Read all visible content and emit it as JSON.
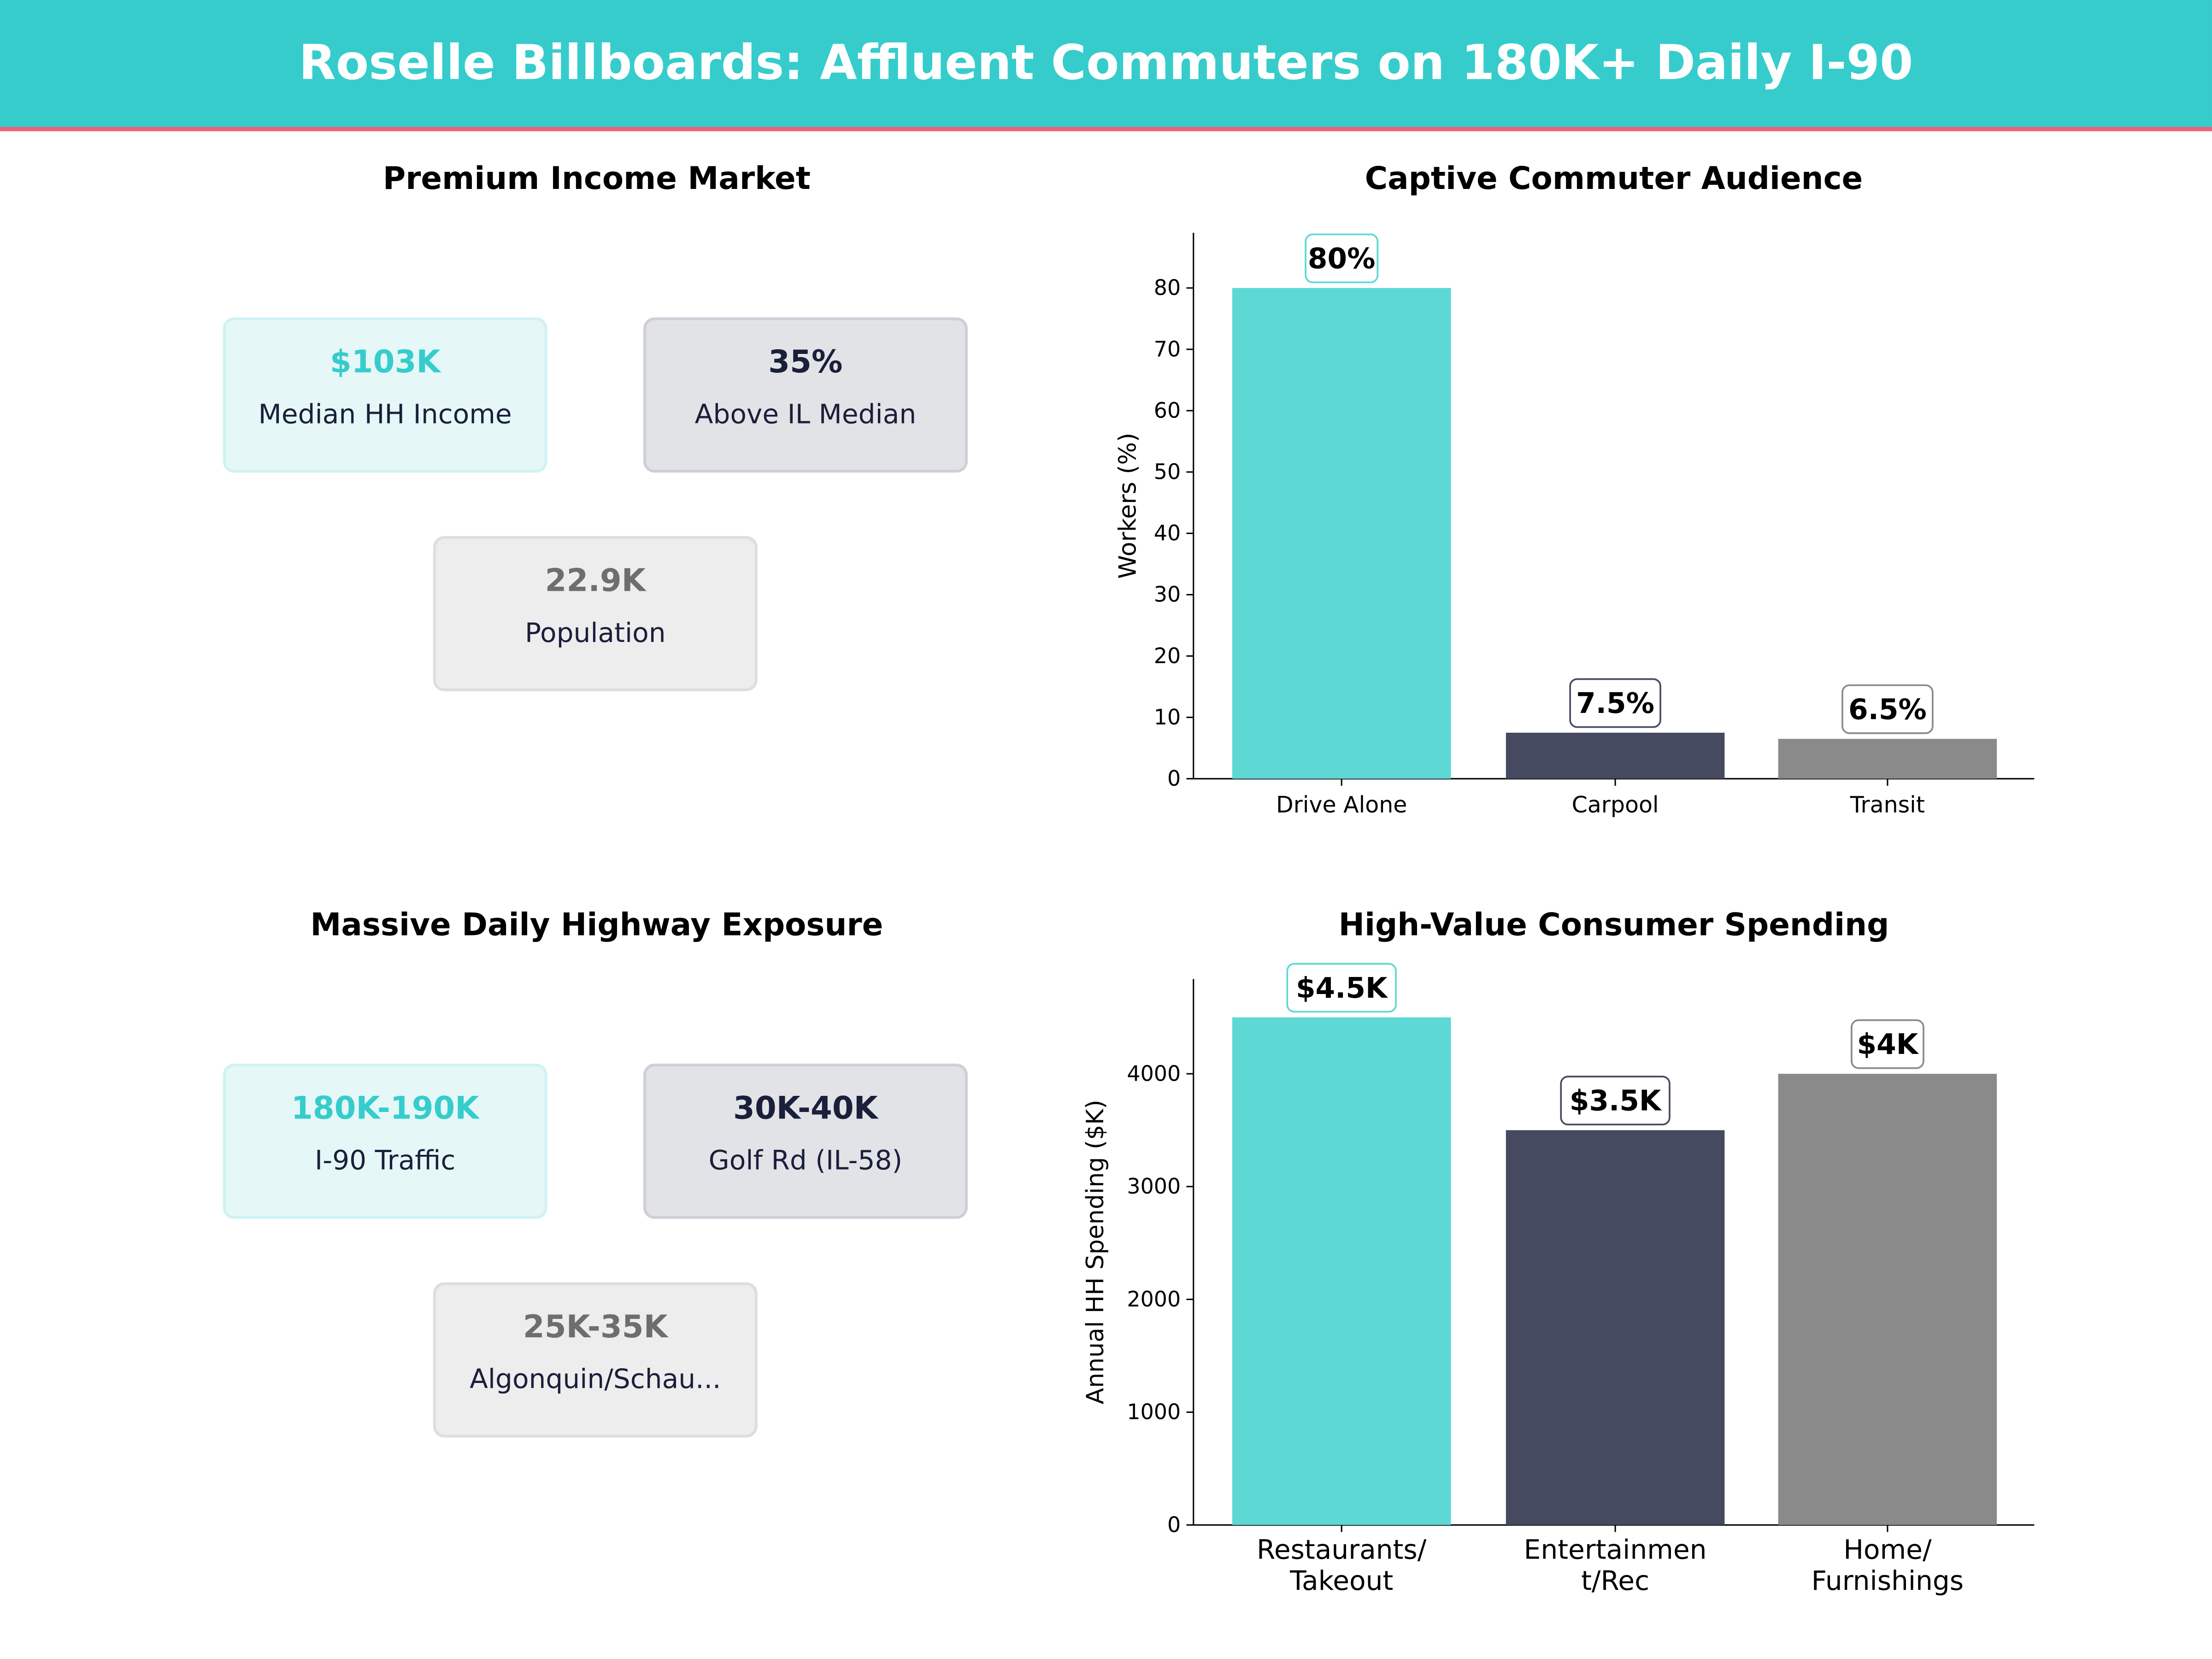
{
  "header": {
    "title": "Roselle Billboards: Affluent Commuters on 180K+ Daily I-90"
  },
  "colors": {
    "teal": "#36CCCC",
    "accent_line": "#F0607A",
    "bars": [
      "#5DD8D5",
      "#454A60",
      "#8A8A8A"
    ]
  },
  "income_panel": {
    "title": "Premium Income Market",
    "cards": [
      {
        "value": "$103K",
        "label": "Median HH Income"
      },
      {
        "value": "35%",
        "label": "Above IL Median"
      },
      {
        "value": "22.9K",
        "label": "Population"
      }
    ]
  },
  "traffic_panel": {
    "title": "Massive Daily Highway Exposure",
    "cards": [
      {
        "value": "180K-190K",
        "label": "I-90  Traffic"
      },
      {
        "value": "30K-40K",
        "label": "Golf Rd (IL-58)"
      },
      {
        "value": "25K-35K",
        "label": "Algonquin/Schau..."
      }
    ]
  },
  "chart_data": [
    {
      "type": "bar",
      "title": "Captive Commuter Audience",
      "xlabel": "",
      "ylabel": "Workers (%)",
      "categories": [
        [
          "Drive Alone"
        ],
        [
          "Carpool"
        ],
        [
          "Transit"
        ]
      ],
      "values": [
        80,
        7.5,
        6.5
      ],
      "data_labels": [
        "80%",
        "7.5%",
        "6.5%"
      ],
      "ylim": [
        0,
        89
      ],
      "yticks": [
        0,
        10,
        20,
        30,
        40,
        50,
        60,
        70,
        80
      ],
      "grid": false
    },
    {
      "type": "bar",
      "title": "High-Value Consumer Spending",
      "xlabel": "",
      "ylabel": "Annual HH Spending ($K)",
      "categories": [
        [
          "Restaurants/",
          "Takeout"
        ],
        [
          "Entertainmen",
          "t/Rec"
        ],
        [
          "Home/",
          "Furnishings"
        ]
      ],
      "values": [
        4500,
        3500,
        4000
      ],
      "data_labels": [
        "$4.5K",
        "$3.5K",
        "$4K"
      ],
      "ylim": [
        0,
        4840
      ],
      "yticks": [
        0,
        1000,
        2000,
        3000,
        4000
      ],
      "grid": false
    }
  ]
}
